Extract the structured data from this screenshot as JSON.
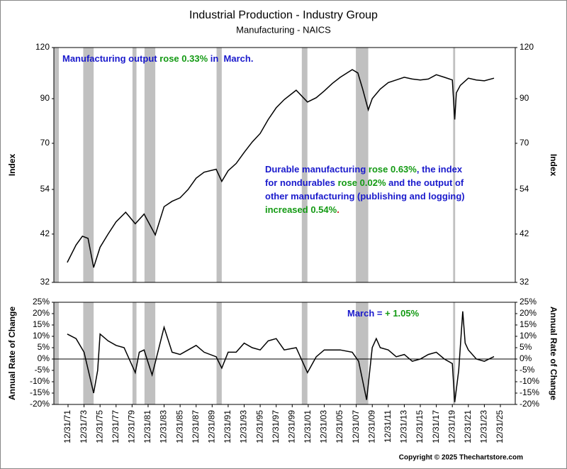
{
  "chart_data": [
    {
      "type": "line",
      "title": "Industrial Production - Industry Group",
      "subtitle": "Manufacturing - NAICS",
      "ylabel": "Index",
      "log_scale": true,
      "color": "#000000",
      "shade_color": "#c0c0c0",
      "xlim": [
        1970.23,
        2027.86
      ],
      "ylim": [
        32,
        120
      ],
      "yticks": [
        32,
        42,
        54,
        70,
        90,
        120
      ],
      "shaded_ranges": [
        [
          1970.23,
          1970.85
        ],
        [
          1973.9,
          1975.2
        ],
        [
          1980.05,
          1980.55
        ],
        [
          1981.55,
          1982.9
        ],
        [
          1990.55,
          1991.2
        ],
        [
          2001.2,
          2001.9
        ],
        [
          2007.95,
          2009.5
        ],
        [
          2020.1,
          2020.35
        ]
      ],
      "x": [
        1971.9,
        1973.0,
        1973.8,
        1974.5,
        1975.2,
        1976.0,
        1977.0,
        1978.0,
        1979.2,
        1980.4,
        1981.5,
        1982.9,
        1984.0,
        1985.0,
        1986.0,
        1987.0,
        1988.0,
        1989.0,
        1990.5,
        1991.2,
        1992.0,
        1993.0,
        1994.0,
        1995.0,
        1996.0,
        1997.0,
        1998.0,
        1999.0,
        2000.5,
        2001.9,
        2003.0,
        2004.0,
        2005.0,
        2006.0,
        2007.5,
        2008.2,
        2008.8,
        2009.5,
        2010.0,
        2011.0,
        2012.0,
        2013.0,
        2014.0,
        2015.0,
        2016.0,
        2017.0,
        2018.0,
        2019.0,
        2020.0,
        2020.3,
        2020.5,
        2021.0,
        2022.0,
        2023.0,
        2024.0,
        2025.2
      ],
      "values": [
        35.8,
        39.5,
        41.5,
        41,
        34.8,
        39,
        42,
        45,
        47.5,
        44.5,
        47,
        41.8,
        49,
        50.5,
        51.5,
        54,
        57.5,
        59.5,
        60.5,
        56.5,
        60,
        62.5,
        66.5,
        70.5,
        74,
        80,
        85.5,
        89.5,
        94.4,
        88.3,
        90.5,
        94,
        98,
        101.5,
        106,
        104,
        95,
        84.5,
        90,
        95,
        98.5,
        100,
        101.5,
        100.5,
        100,
        100.5,
        103,
        101.5,
        100,
        80,
        93,
        97,
        101,
        100,
        99.5,
        101
      ],
      "annotations": [
        {
          "lines": [
            [
              {
                "text": "Manufacturing output",
                "color": "#1a1acc"
              },
              {
                "text": " rose 0.33%",
                "color": "#139a13"
              },
              {
                "text": " in  March.",
                "color": "#1a1acc"
              }
            ]
          ]
        },
        {
          "lines": [
            [
              {
                "text": "Durable manufacturing",
                "color": "#1a1acc"
              },
              {
                "text": " rose 0.63%",
                "color": "#139a13"
              },
              {
                "text": ", the index",
                "color": "#1a1acc"
              }
            ],
            [
              {
                "text": "for nondurables",
                "color": "#1a1acc"
              },
              {
                "text": " rose 0.02%",
                "color": "#139a13"
              },
              {
                "text": " and the output of",
                "color": "#1a1acc"
              }
            ],
            [
              {
                "text": "other manufacturing (publishing and logging)",
                "color": "#1a1acc"
              }
            ],
            [
              {
                "text": "increased 0.54%",
                "color": "#139a13"
              },
              {
                "text": ".",
                "color": "#cc1a1a"
              }
            ]
          ]
        }
      ]
    },
    {
      "type": "line",
      "ylabel": "Annual Rate of Change",
      "color": "#000000",
      "shade_color": "#c0c0c0",
      "xlim": [
        1970.23,
        2027.86
      ],
      "ylim": [
        -20,
        25
      ],
      "yticks": [
        {
          "value": 25,
          "label": "25%"
        },
        {
          "value": 20,
          "label": "20%"
        },
        {
          "value": 15,
          "label": "15%"
        },
        {
          "value": 10,
          "label": "10%"
        },
        {
          "value": 5,
          "label": "5%"
        },
        {
          "value": 0,
          "label": "0%"
        },
        {
          "value": -5,
          "label": "-5%"
        },
        {
          "value": -10,
          "label": "-10%"
        },
        {
          "value": -15,
          "label": "-15%"
        },
        {
          "value": -20,
          "label": "-20%"
        }
      ],
      "xticks": [
        {
          "value": 1972,
          "label": "12/31/71"
        },
        {
          "value": 1974,
          "label": "12/31/73"
        },
        {
          "value": 1976,
          "label": "12/31/75"
        },
        {
          "value": 1978,
          "label": "12/31/77"
        },
        {
          "value": 1980,
          "label": "12/31/79"
        },
        {
          "value": 1982,
          "label": "12/31/81"
        },
        {
          "value": 1984,
          "label": "12/31/83"
        },
        {
          "value": 1986,
          "label": "12/31/85"
        },
        {
          "value": 1988,
          "label": "12/31/87"
        },
        {
          "value": 1990,
          "label": "12/31/89"
        },
        {
          "value": 1992,
          "label": "12/31/91"
        },
        {
          "value": 1994,
          "label": "12/31/93"
        },
        {
          "value": 1996,
          "label": "12/31/95"
        },
        {
          "value": 1998,
          "label": "12/31/97"
        },
        {
          "value": 2000,
          "label": "12/31/99"
        },
        {
          "value": 2002,
          "label": "12/31/01"
        },
        {
          "value": 2004,
          "label": "12/31/03"
        },
        {
          "value": 2006,
          "label": "12/31/05"
        },
        {
          "value": 2008,
          "label": "12/31/07"
        },
        {
          "value": 2010,
          "label": "12/31/09"
        },
        {
          "value": 2012,
          "label": "12/31/11"
        },
        {
          "value": 2014,
          "label": "12/31/13"
        },
        {
          "value": 2016,
          "label": "12/31/15"
        },
        {
          "value": 2018,
          "label": "12/31/17"
        },
        {
          "value": 2020,
          "label": "12/31/19"
        },
        {
          "value": 2022,
          "label": "12/31/21"
        },
        {
          "value": 2024,
          "label": "12/31/23"
        },
        {
          "value": 2026,
          "label": "12/31/25"
        }
      ],
      "shaded_ranges": [
        [
          1970.23,
          1970.85
        ],
        [
          1973.9,
          1975.2
        ],
        [
          1980.05,
          1980.55
        ],
        [
          1981.55,
          1982.9
        ],
        [
          1990.55,
          1991.2
        ],
        [
          2001.2,
          2001.9
        ],
        [
          2007.95,
          2009.5
        ],
        [
          2020.1,
          2020.35
        ]
      ],
      "x": [
        1971.9,
        1973.0,
        1974.0,
        1975.2,
        1975.7,
        1976.0,
        1977.0,
        1978.0,
        1979.0,
        1980.4,
        1980.9,
        1981.5,
        1982.5,
        1983.0,
        1984.0,
        1985.0,
        1986.0,
        1987.0,
        1988.0,
        1989.0,
        1990.5,
        1991.2,
        1992.0,
        1993.0,
        1994.0,
        1995.0,
        1996.0,
        1997.0,
        1998.0,
        1999.0,
        2000.5,
        2001.9,
        2003.0,
        2004.0,
        2005.0,
        2006.0,
        2007.5,
        2008.3,
        2009.3,
        2010.0,
        2010.5,
        2011.0,
        2012.0,
        2013.0,
        2014.0,
        2015.0,
        2016.0,
        2017.0,
        2018.0,
        2019.0,
        2020.0,
        2020.3,
        2020.8,
        2021.3,
        2021.6,
        2022.0,
        2023.0,
        2024.0,
        2025.2
      ],
      "values": [
        11,
        9,
        3,
        -15,
        -5,
        11,
        8,
        6,
        5,
        -6,
        3,
        4,
        -7,
        0,
        14,
        3,
        2,
        4,
        6,
        3,
        1,
        -4,
        3,
        3,
        7,
        5,
        4,
        8,
        9,
        4,
        5,
        -6,
        1,
        4,
        4,
        4,
        3,
        -1,
        -18,
        5,
        9,
        5,
        4,
        1,
        2,
        -1,
        0,
        2,
        3,
        0,
        -2,
        -19,
        -5,
        21,
        7,
        4,
        0,
        -1,
        1.05
      ],
      "annotations": [
        {
          "lines": [
            [
              {
                "text": "March = ",
                "color": "#1a1acc"
              },
              {
                "text": "+ 1.05%",
                "color": "#139a13"
              }
            ]
          ]
        }
      ]
    }
  ],
  "copyright": "Copyright © 2025 Thechartstore.com"
}
